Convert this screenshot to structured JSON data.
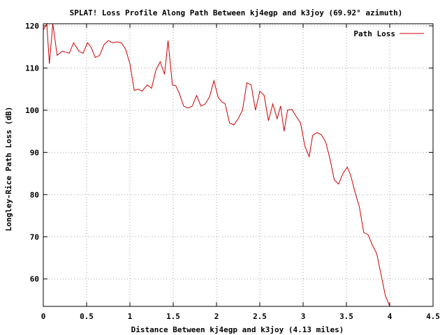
{
  "chart_data": {
    "type": "line",
    "title": "SPLAT! Loss Profile Along Path Between kj4egp and k3joy (69.92° azimuth)",
    "xlabel": "Distance Between kj4egp and k3joy (4.13 miles)",
    "ylabel": "Longley-Rice Path Loss (dB)",
    "xlim": [
      0,
      4.5
    ],
    "ylim": [
      53.5,
      120.5
    ],
    "x_ticks": [
      0,
      0.5,
      1,
      1.5,
      2,
      2.5,
      3,
      3.5,
      4,
      4.5
    ],
    "x_tick_labels": [
      "0",
      "0.5",
      "1",
      "1.5",
      "2",
      "2.5",
      "3",
      "3.5",
      "4",
      "4.5"
    ],
    "y_ticks": [
      60,
      70,
      80,
      90,
      100,
      110,
      120
    ],
    "y_tick_labels": [
      "60",
      "70",
      "80",
      "90",
      "100",
      "110",
      "120"
    ],
    "grid": true,
    "legend_position": "top-right",
    "series_color": "#cc0000",
    "series": [
      {
        "name": "Path Loss",
        "x": [
          0,
          0.04,
          0.07,
          0.11,
          0.16,
          0.22,
          0.3,
          0.35,
          0.41,
          0.46,
          0.51,
          0.55,
          0.6,
          0.65,
          0.7,
          0.75,
          0.8,
          0.85,
          0.9,
          0.95,
          1.0,
          1.05,
          1.1,
          1.14,
          1.2,
          1.25,
          1.3,
          1.35,
          1.4,
          1.44,
          1.49,
          1.53,
          1.57,
          1.62,
          1.67,
          1.72,
          1.77,
          1.82,
          1.87,
          1.92,
          1.97,
          2.02,
          2.06,
          2.1,
          2.15,
          2.2,
          2.25,
          2.3,
          2.35,
          2.4,
          2.45,
          2.5,
          2.55,
          2.6,
          2.65,
          2.7,
          2.74,
          2.78,
          2.82,
          2.87,
          2.92,
          2.97,
          3.02,
          3.07,
          3.11,
          3.16,
          3.21,
          3.26,
          3.31,
          3.36,
          3.41,
          3.46,
          3.51,
          3.55,
          3.6,
          3.65,
          3.7,
          3.75,
          3.8,
          3.85,
          3.9,
          3.95,
          4.0
        ],
        "values": [
          119,
          120.5,
          111,
          120.5,
          113,
          114,
          113.5,
          116,
          114,
          113.5,
          116,
          115,
          112.5,
          113,
          115.5,
          116.5,
          116,
          116.2,
          116,
          114.5,
          111,
          104.7,
          105,
          104.5,
          106,
          105.2,
          109.5,
          111.5,
          108.5,
          116.5,
          106,
          105.8,
          104,
          101,
          100.5,
          101,
          103.5,
          101,
          101.5,
          103.2,
          107,
          103,
          102,
          101.5,
          97,
          96.5,
          98,
          100,
          106.5,
          106,
          100,
          104.5,
          103.5,
          97.5,
          101.5,
          98,
          101,
          95,
          100,
          100.2,
          98.5,
          97,
          91.5,
          89,
          94,
          94.7,
          94.2,
          92.5,
          88.5,
          83.5,
          82.5,
          85,
          86.5,
          84.5,
          80.5,
          77,
          71,
          70.5,
          68,
          66,
          61,
          56,
          53.5
        ]
      }
    ]
  }
}
